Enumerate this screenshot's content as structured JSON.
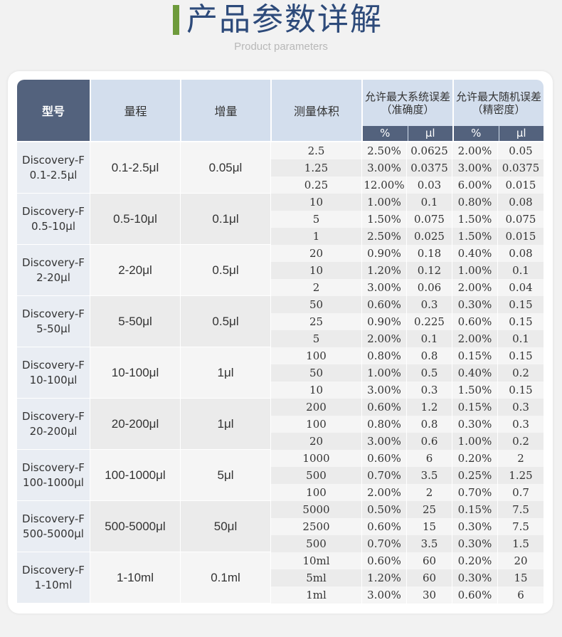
{
  "header": {
    "title": "产品参数详解",
    "subtitle": "Product parameters"
  },
  "table": {
    "columns": {
      "model": "型号",
      "range": "量程",
      "increment": "增量",
      "volume": "测量体积",
      "sys_error": [
        "允许最大系统误差",
        "（准确度）"
      ],
      "rand_error": [
        "允许最大随机误差",
        "（精密度）"
      ],
      "percent": "%",
      "ul": "μl"
    },
    "rows": [
      {
        "model": [
          "Discovery-F",
          "0.1-2.5μl"
        ],
        "range": "0.1-2.5μl",
        "increment": "0.05μl",
        "subs": [
          [
            "2.5",
            "2.50%",
            "0.0625",
            "2.00%",
            "0.05"
          ],
          [
            "1.25",
            "3.00%",
            "0.0375",
            "3.00%",
            "0.0375"
          ],
          [
            "0.25",
            "12.00%",
            "0.03",
            "6.00%",
            "0.015"
          ]
        ]
      },
      {
        "model": [
          "Discovery-F",
          "0.5-10μl"
        ],
        "range": "0.5-10μl",
        "increment": "0.1μl",
        "subs": [
          [
            "10",
            "1.00%",
            "0.1",
            "0.80%",
            "0.08"
          ],
          [
            "5",
            "1.50%",
            "0.075",
            "1.50%",
            "0.075"
          ],
          [
            "1",
            "2.50%",
            "0.025",
            "1.50%",
            "0.015"
          ]
        ]
      },
      {
        "model": [
          "Discovery-F",
          "2-20μl"
        ],
        "range": "2-20μl",
        "increment": "0.5μl",
        "subs": [
          [
            "20",
            "0.90%",
            "0.18",
            "0.40%",
            "0.08"
          ],
          [
            "10",
            "1.20%",
            "0.12",
            "1.00%",
            "0.1"
          ],
          [
            "2",
            "3.00%",
            "0.06",
            "2.00%",
            "0.04"
          ]
        ]
      },
      {
        "model": [
          "Discovery-F",
          "5-50μl"
        ],
        "range": "5-50μl",
        "increment": "0.5μl",
        "subs": [
          [
            "50",
            "0.60%",
            "0.3",
            "0.30%",
            "0.15"
          ],
          [
            "25",
            "0.90%",
            "0.225",
            "0.60%",
            "0.15"
          ],
          [
            "5",
            "2.00%",
            "0.1",
            "2.00%",
            "0.1"
          ]
        ]
      },
      {
        "model": [
          "Discovery-F",
          "10-100μl"
        ],
        "range": "10-100μl",
        "increment": "1μl",
        "subs": [
          [
            "100",
            "0.80%",
            "0.8",
            "0.15%",
            "0.15"
          ],
          [
            "50",
            "1.00%",
            "0.5",
            "0.40%",
            "0.2"
          ],
          [
            "10",
            "3.00%",
            "0.3",
            "1.50%",
            "0.15"
          ]
        ]
      },
      {
        "model": [
          "Discovery-F",
          "20-200μl"
        ],
        "range": "20-200μl",
        "increment": "1μl",
        "subs": [
          [
            "200",
            "0.60%",
            "1.2",
            "0.15%",
            "0.3"
          ],
          [
            "100",
            "0.80%",
            "0.8",
            "0.30%",
            "0.3"
          ],
          [
            "20",
            "3.00%",
            "0.6",
            "1.00%",
            "0.2"
          ]
        ]
      },
      {
        "model": [
          "Discovery-F",
          "100-1000μl"
        ],
        "range": "100-1000μl",
        "increment": "5μl",
        "subs": [
          [
            "1000",
            "0.60%",
            "6",
            "0.20%",
            "2"
          ],
          [
            "500",
            "0.70%",
            "3.5",
            "0.25%",
            "1.25"
          ],
          [
            "100",
            "2.00%",
            "2",
            "0.70%",
            "0.7"
          ]
        ]
      },
      {
        "model": [
          "Discovery-F",
          "500-5000μl"
        ],
        "range": "500-5000μl",
        "increment": "50μl",
        "subs": [
          [
            "5000",
            "0.50%",
            "25",
            "0.15%",
            "7.5"
          ],
          [
            "2500",
            "0.60%",
            "15",
            "0.30%",
            "7.5"
          ],
          [
            "500",
            "0.70%",
            "3.5",
            "0.30%",
            "1.5"
          ]
        ]
      },
      {
        "model": [
          "Discovery-F",
          "1-10ml"
        ],
        "range": "1-10ml",
        "increment": "0.1ml",
        "subs": [
          [
            "10ml",
            "0.60%",
            "60",
            "0.20%",
            "20"
          ],
          [
            "5ml",
            "1.20%",
            "60",
            "0.30%",
            "15"
          ],
          [
            "1ml",
            "3.00%",
            "30",
            "0.60%",
            "6"
          ]
        ]
      }
    ]
  },
  "colors": {
    "accent_green": "#6e9b3c",
    "title_blue": "#2d4a7a",
    "header_dark": "#53627d",
    "header_light": "#d3deed"
  }
}
